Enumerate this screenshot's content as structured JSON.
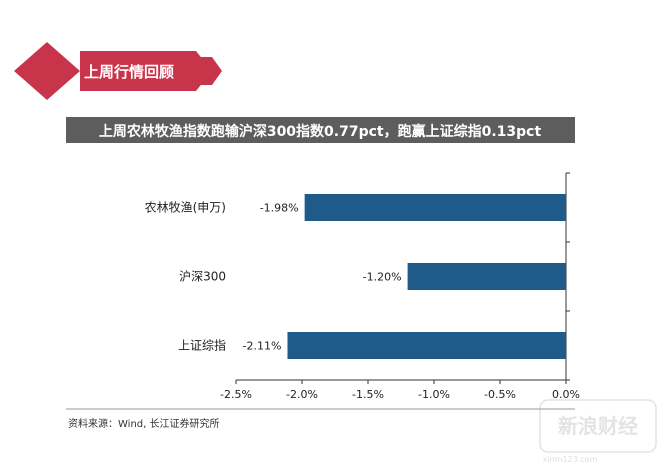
{
  "header": {
    "label": "上周行情回顾"
  },
  "headline": "上周农林牧渔指数跑输沪深300指数0.77pct，跑赢上证综指0.13pct",
  "source": "资料来源：Wind, 长江证券研究所",
  "watermark": {
    "text": "新浪财经",
    "url": "xinm123.com"
  },
  "colors": {
    "brand_red": "#c8354a",
    "banner_gray": "#5d5d5d",
    "bar_blue": "#1f5b8a"
  },
  "chart_data": {
    "type": "bar",
    "orientation": "horizontal",
    "categories": [
      "农林牧渔(申万)",
      "沪深300",
      "上证综指"
    ],
    "values": [
      -1.98,
      -1.2,
      -2.11
    ],
    "data_labels": [
      "-1.98%",
      "-1.20%",
      "-2.11%"
    ],
    "x_ticks": [
      -2.5,
      -2.0,
      -1.5,
      -1.0,
      -0.5,
      0.0
    ],
    "x_tick_labels": [
      "-2.5%",
      "-2.0%",
      "-1.5%",
      "-1.0%",
      "-0.5%",
      "0.0%"
    ],
    "xlim": [
      -2.5,
      0.0
    ],
    "grid": false,
    "legend": "none"
  }
}
